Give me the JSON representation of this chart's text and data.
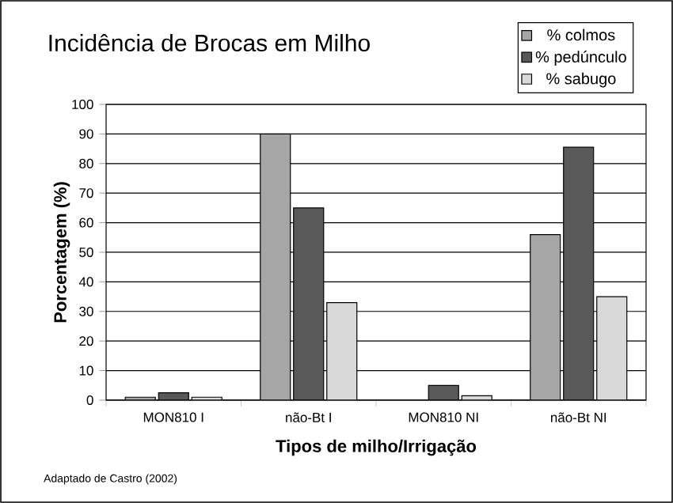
{
  "chart_data": {
    "type": "bar",
    "title": "Incidência de Brocas em Milho",
    "xlabel": "Tipos de milho/Irrigação",
    "ylabel": "Porcentagem (%)",
    "categories": [
      "MON810 I",
      "não-Bt I",
      "MON810 NI",
      "não-Bt NI"
    ],
    "series": [
      {
        "name": "% colmos",
        "color": "#a6a6a6",
        "values": [
          1,
          90,
          null,
          56
        ]
      },
      {
        "name": "% pedúnculo",
        "color": "#595959",
        "values": [
          2.5,
          65,
          5,
          85.5
        ]
      },
      {
        "name": "% sabugo",
        "color": "#d9d9d9",
        "values": [
          1,
          33,
          1.5,
          35
        ]
      }
    ],
    "ylim": [
      0,
      100
    ],
    "yticks": [
      0,
      10,
      20,
      30,
      40,
      50,
      60,
      70,
      80,
      90,
      100
    ],
    "grid": "y",
    "legend": "top right",
    "annotations": [
      "Adaptado de Castro (2002)"
    ]
  }
}
